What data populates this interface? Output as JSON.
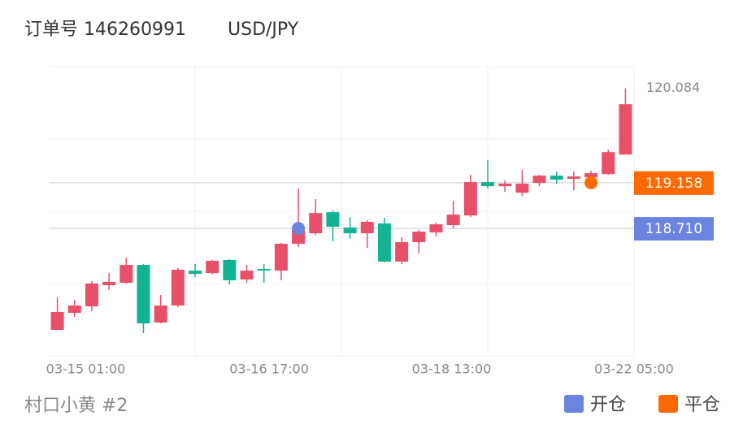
{
  "chart_data": {
    "type": "candlestick",
    "title": "订单号 146260991",
    "symbol": "USD/JPY",
    "account": "村口小黄 #2",
    "up_color": "#e8506a",
    "down_color": "#13b293",
    "ylim": [
      117.46,
      120.296
    ],
    "ygrid": [
      117.46,
      118.169,
      118.878,
      119.587,
      120.296
    ],
    "xlim": [
      -0.5,
      33.5
    ],
    "xgrid": [
      8,
      16.5,
      25,
      33.5
    ],
    "xticks": [
      {
        "value": 1.65,
        "label": "03-15 01:00"
      },
      {
        "value": 12.3,
        "label": "03-16 17:00"
      },
      {
        "value": 22.9,
        "label": "03-18 13:00"
      },
      {
        "value": 33.5,
        "label": "03-22 05:00"
      }
    ],
    "high_price": {
      "value": 120.084,
      "label": "120.084"
    },
    "candles": [
      {
        "open": 117.715,
        "high": 118.033,
        "low": 117.715,
        "close": 117.89
      },
      {
        "open": 117.882,
        "high": 118.01,
        "low": 117.842,
        "close": 117.954
      },
      {
        "open": 117.946,
        "high": 118.193,
        "low": 117.898,
        "close": 118.169
      },
      {
        "open": 118.153,
        "high": 118.272,
        "low": 118.105,
        "close": 118.185
      },
      {
        "open": 118.177,
        "high": 118.423,
        "low": 118.169,
        "close": 118.352
      },
      {
        "open": 118.352,
        "high": 118.36,
        "low": 117.683,
        "close": 117.779
      },
      {
        "open": 117.787,
        "high": 118.057,
        "low": 117.779,
        "close": 117.954
      },
      {
        "open": 117.954,
        "high": 118.32,
        "low": 117.938,
        "close": 118.304
      },
      {
        "open": 118.296,
        "high": 118.36,
        "low": 118.232,
        "close": 118.264
      },
      {
        "open": 118.272,
        "high": 118.4,
        "low": 118.256,
        "close": 118.392
      },
      {
        "open": 118.4,
        "high": 118.408,
        "low": 118.161,
        "close": 118.201
      },
      {
        "open": 118.209,
        "high": 118.352,
        "low": 118.177,
        "close": 118.296
      },
      {
        "open": 118.312,
        "high": 118.36,
        "low": 118.177,
        "close": 118.296
      },
      {
        "open": 118.296,
        "high": 118.567,
        "low": 118.201,
        "close": 118.559
      },
      {
        "open": 118.559,
        "high": 119.1,
        "low": 118.527,
        "close": 118.694
      },
      {
        "open": 118.662,
        "high": 118.997,
        "low": 118.646,
        "close": 118.861
      },
      {
        "open": 118.869,
        "high": 118.885,
        "low": 118.583,
        "close": 118.726
      },
      {
        "open": 118.718,
        "high": 118.821,
        "low": 118.607,
        "close": 118.662
      },
      {
        "open": 118.662,
        "high": 118.79,
        "low": 118.519,
        "close": 118.774
      },
      {
        "open": 118.758,
        "high": 118.813,
        "low": 118.376,
        "close": 118.384
      },
      {
        "open": 118.384,
        "high": 118.622,
        "low": 118.36,
        "close": 118.575
      },
      {
        "open": 118.575,
        "high": 118.694,
        "low": 118.463,
        "close": 118.678
      },
      {
        "open": 118.67,
        "high": 118.766,
        "low": 118.63,
        "close": 118.75
      },
      {
        "open": 118.742,
        "high": 118.981,
        "low": 118.71,
        "close": 118.845
      },
      {
        "open": 118.837,
        "high": 119.235,
        "low": 118.821,
        "close": 119.164
      },
      {
        "open": 119.164,
        "high": 119.379,
        "low": 119.1,
        "close": 119.124
      },
      {
        "open": 119.124,
        "high": 119.18,
        "low": 119.068,
        "close": 119.148
      },
      {
        "open": 119.06,
        "high": 119.283,
        "low": 119.028,
        "close": 119.148
      },
      {
        "open": 119.156,
        "high": 119.235,
        "low": 119.124,
        "close": 119.227
      },
      {
        "open": 119.227,
        "high": 119.267,
        "low": 119.148,
        "close": 119.188
      },
      {
        "open": 119.196,
        "high": 119.267,
        "low": 119.084,
        "close": 119.219
      },
      {
        "open": 119.211,
        "high": 119.275,
        "low": 119.18,
        "close": 119.251
      },
      {
        "open": 119.243,
        "high": 119.482,
        "low": 119.235,
        "close": 119.458
      },
      {
        "open": 119.434,
        "high": 120.084,
        "low": 119.434,
        "close": 119.928
      }
    ],
    "trades": [
      {
        "name": "开仓",
        "color": "#6b84e0",
        "candle": 14,
        "price": {
          "value": 118.71,
          "label": "118.710"
        }
      },
      {
        "name": "平仓",
        "color": "#ff6a00",
        "candle": 31,
        "price": {
          "value": 119.158,
          "label": "119.158"
        }
      }
    ]
  }
}
